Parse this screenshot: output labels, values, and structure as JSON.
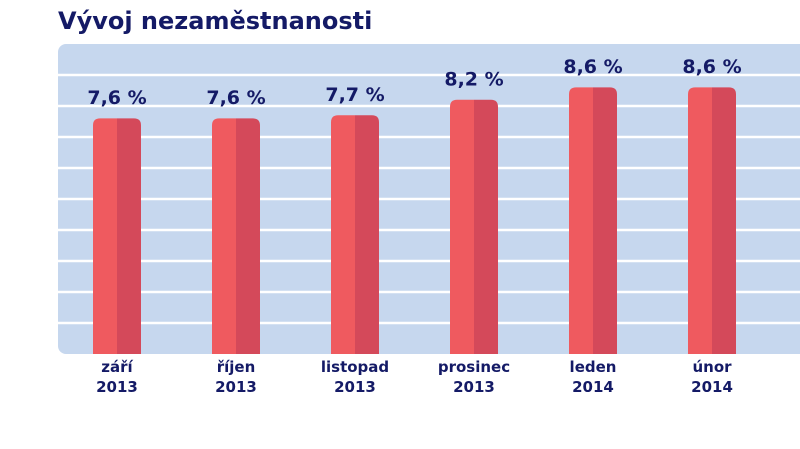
{
  "chart_data": {
    "type": "bar",
    "title": "Vývoj nezaměstnanosti",
    "categories": [
      "září 2013",
      "říjen 2013",
      "listopad 2013",
      "prosinec 2013",
      "leden 2014",
      "únor 2014"
    ],
    "values": [
      7.6,
      7.6,
      7.7,
      8.2,
      8.6,
      8.6
    ],
    "value_labels": [
      "7,6 %",
      "7,6 %",
      "7,7 %",
      "8,2 %",
      "8,6 %",
      "8,6 %"
    ],
    "colors": [
      "#ef5a5f",
      "#d4495a"
    ],
    "ylim": [
      0,
      10
    ],
    "yticks": [
      1,
      2,
      3,
      4,
      5,
      6,
      7,
      8,
      9
    ],
    "grid": true
  }
}
